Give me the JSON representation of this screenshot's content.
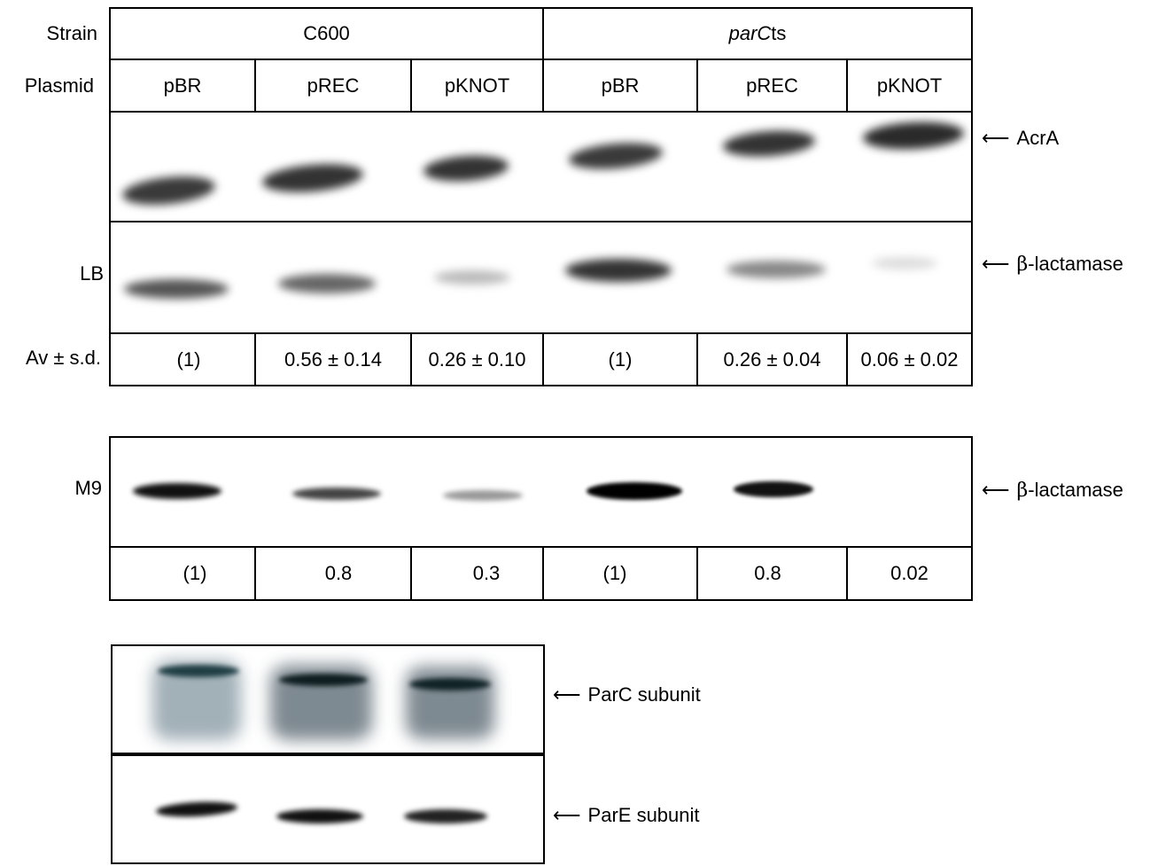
{
  "row_labels": {
    "strain": "Strain",
    "plasmid": "Plasmid",
    "lb": "LB",
    "avsd": "Av ± s.d.",
    "m9": "M9"
  },
  "strains": {
    "c600": "C600",
    "parcts_italic": "parC",
    "parcts_suffix": "ts"
  },
  "plasmids": [
    "pBR",
    "pREC",
    "pKNOT",
    "pBR",
    "pREC",
    "pKNOT"
  ],
  "lb_values": [
    "(1)",
    "0.56 ± 0.14",
    "0.26 ± 0.10",
    "(1)",
    "0.26 ± 0.04",
    "0.06 ± 0.02"
  ],
  "m9_values": [
    "(1)",
    "0.8",
    "0.3",
    "(1)",
    "0.8",
    "0.02"
  ],
  "arrows": {
    "acra": "AcrA",
    "beta_lb_symbol": "β",
    "beta_lb_text": "-lactamase",
    "beta_m9_symbol": "β",
    "beta_m9_text": "-lactamase",
    "parc": "ParC subunit",
    "pare": "ParE subunit"
  },
  "colors": {
    "band_dark": "#1a1a1a",
    "parc_band": "#1f3e44"
  }
}
